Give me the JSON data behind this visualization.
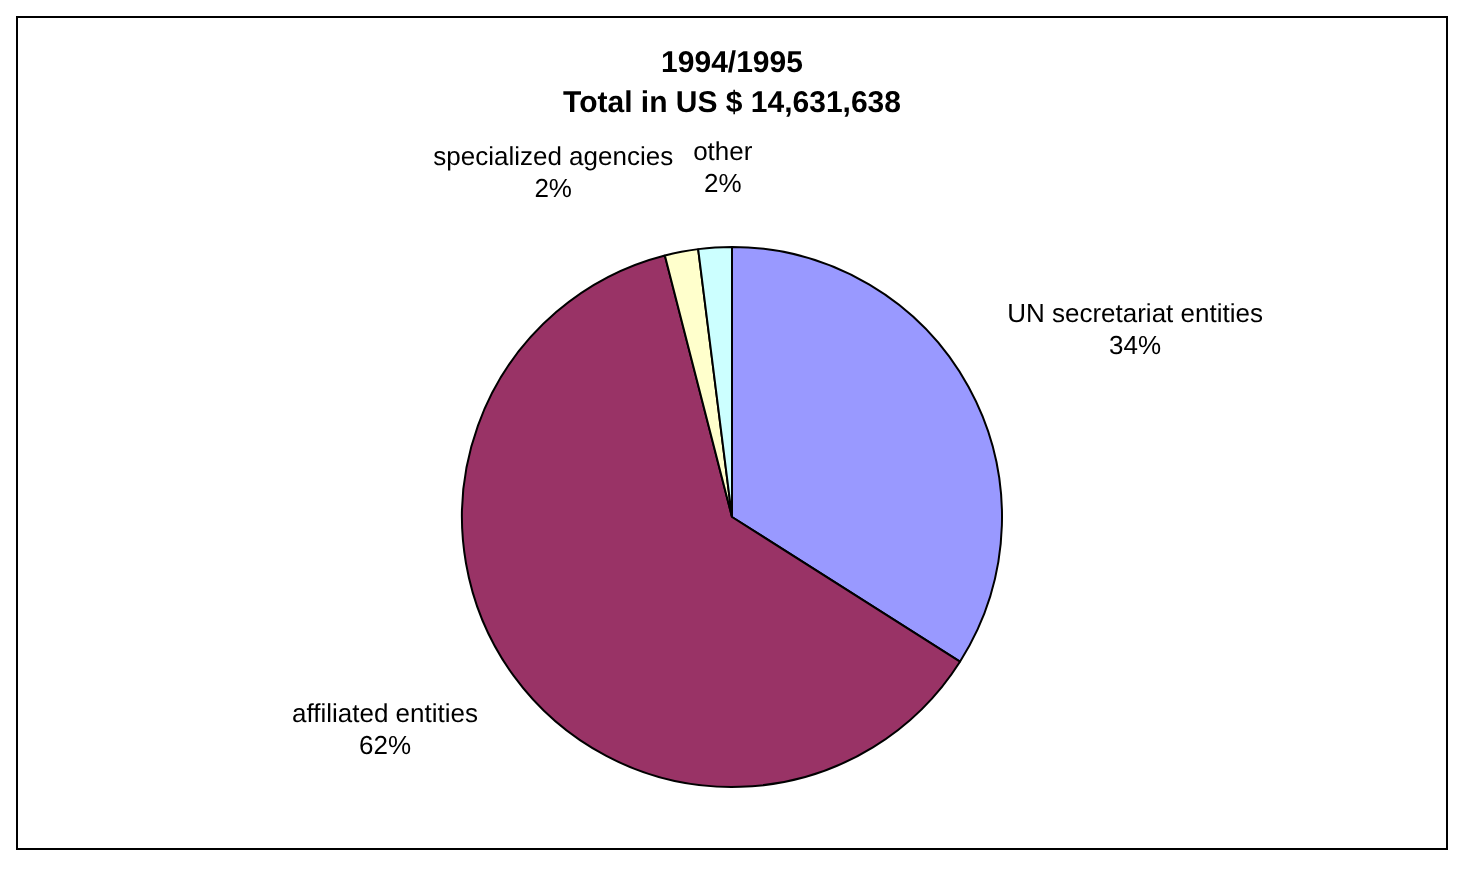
{
  "chart_data": {
    "type": "pie",
    "title": "1994/1995",
    "subtitle": "Total in US $ 14,631,638",
    "categories": [
      "UN secretariat entities",
      "affiliated entities",
      "specialized agencies",
      "other"
    ],
    "values": [
      34,
      62,
      2,
      2
    ],
    "colors": [
      "#9999ff",
      "#993366",
      "#ffffcc",
      "#ccffff"
    ],
    "value_labels": [
      "34%",
      "62%",
      "2%",
      "2%"
    ],
    "legend": false
  }
}
